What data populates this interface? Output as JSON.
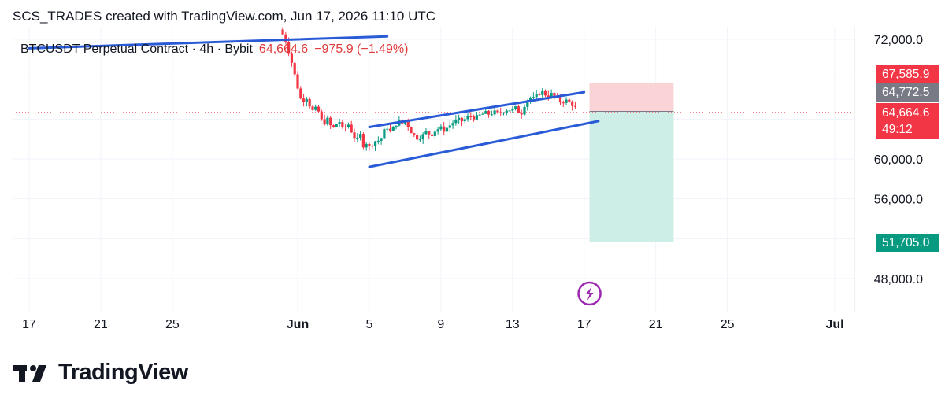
{
  "header": {
    "caption": "SCS_TRADES created with TradingView.com, Jun 17, 2026 11:10 UTC"
  },
  "legend": {
    "symbol": "BTCUSDT Perpetual Contract · 4h · Bybit",
    "last": "64,664.6",
    "change": "−975.9 (−1.49%)"
  },
  "tags": {
    "stop_loss": "67,585.9",
    "entry": "64,772.5",
    "current": "64,664.6",
    "countdown": "49:12",
    "take_profit": "51,705.0"
  },
  "footer": {
    "brand": "TradingView"
  },
  "colors": {
    "up": "#089981",
    "down": "#f23645",
    "trendline": "#2a5bd7",
    "stop_zone": "#f9d3d6",
    "target_zone": "#cdeee6",
    "lightning": "#9c27b0"
  },
  "chart_data": {
    "type": "candlestick",
    "symbol": "BTCUSDT",
    "interval": "4h",
    "y_axis": {
      "ticks": [
        48000,
        52000,
        56000,
        60000,
        64000,
        68000,
        72000
      ],
      "tick_labels": [
        "48,000.0",
        "",
        "56,000.0",
        "60,000.0",
        "",
        "",
        "72,000.0"
      ],
      "range": [
        46000,
        73500
      ]
    },
    "x_axis": {
      "tick_labels": [
        "17",
        "21",
        "25",
        "Jun",
        "5",
        "9",
        "13",
        "17",
        "21",
        "25",
        "Jul"
      ],
      "tick_days_from_may17": [
        0,
        4,
        8,
        15,
        19,
        23,
        27,
        31,
        35,
        39,
        45
      ],
      "bold": [
        "Jun",
        "Jul"
      ]
    },
    "price_path": [
      [
        14.0,
        73000
      ],
      [
        14.3,
        72100
      ],
      [
        14.6,
        70200
      ],
      [
        14.9,
        67900
      ],
      [
        15.2,
        65800
      ],
      [
        15.5,
        66200
      ],
      [
        15.8,
        64800
      ],
      [
        16.1,
        65100
      ],
      [
        16.4,
        63500
      ],
      [
        16.7,
        64000
      ],
      [
        16.9,
        63000
      ],
      [
        17.1,
        63300
      ],
      [
        17.3,
        63900
      ],
      [
        17.55,
        62800
      ],
      [
        17.8,
        63600
      ],
      [
        18.05,
        62600
      ],
      [
        18.3,
        61800
      ],
      [
        18.5,
        62400
      ],
      [
        18.7,
        61200
      ],
      [
        18.85,
        61700
      ],
      [
        19.0,
        61200
      ],
      [
        19.2,
        61600
      ],
      [
        19.4,
        61900
      ],
      [
        19.6,
        61800
      ],
      [
        19.8,
        62700
      ],
      [
        20.0,
        63200
      ],
      [
        20.2,
        62600
      ],
      [
        20.4,
        63300
      ],
      [
        20.6,
        63800
      ],
      [
        20.8,
        63500
      ],
      [
        21.0,
        63900
      ],
      [
        21.2,
        63200
      ],
      [
        21.45,
        62400
      ],
      [
        21.7,
        62100
      ],
      [
        21.95,
        62300
      ],
      [
        22.2,
        62700
      ],
      [
        22.45,
        62400
      ],
      [
        22.7,
        62900
      ],
      [
        22.95,
        63100
      ],
      [
        23.2,
        62900
      ],
      [
        23.45,
        63300
      ],
      [
        23.7,
        63700
      ],
      [
        23.95,
        63900
      ],
      [
        24.2,
        63800
      ],
      [
        24.45,
        64100
      ],
      [
        24.7,
        64300
      ],
      [
        24.95,
        64100
      ],
      [
        25.2,
        64400
      ],
      [
        25.45,
        64600
      ],
      [
        25.7,
        64500
      ],
      [
        25.95,
        64700
      ],
      [
        26.2,
        64500
      ],
      [
        26.45,
        64800
      ],
      [
        26.7,
        65000
      ],
      [
        26.95,
        64900
      ],
      [
        27.2,
        65100
      ],
      [
        27.45,
        64400
      ],
      [
        27.7,
        65600
      ],
      [
        27.95,
        66200
      ],
      [
        28.2,
        66000
      ],
      [
        28.45,
        66600
      ],
      [
        28.7,
        66700
      ],
      [
        28.95,
        66300
      ],
      [
        29.2,
        66500
      ],
      [
        29.45,
        66100
      ],
      [
        29.7,
        65700
      ],
      [
        29.95,
        65900
      ],
      [
        30.2,
        65600
      ],
      [
        30.45,
        65400
      ],
      [
        30.6,
        64664.6
      ]
    ],
    "channel": {
      "upper": [
        [
          19.0,
          63200
        ],
        [
          31.0,
          66700
        ]
      ],
      "lower": [
        [
          19.0,
          59200
        ],
        [
          31.8,
          63800
        ]
      ],
      "prior_line": [
        [
          0,
          71100
        ],
        [
          20.0,
          72300
        ]
      ]
    },
    "position": {
      "side": "short",
      "entry": 64772.5,
      "stop_loss": 67585.9,
      "take_profit": 51705.0,
      "start_day": 31.3,
      "end_day": 36.0
    },
    "last_price": 64664.6,
    "countdown": "49:12"
  }
}
